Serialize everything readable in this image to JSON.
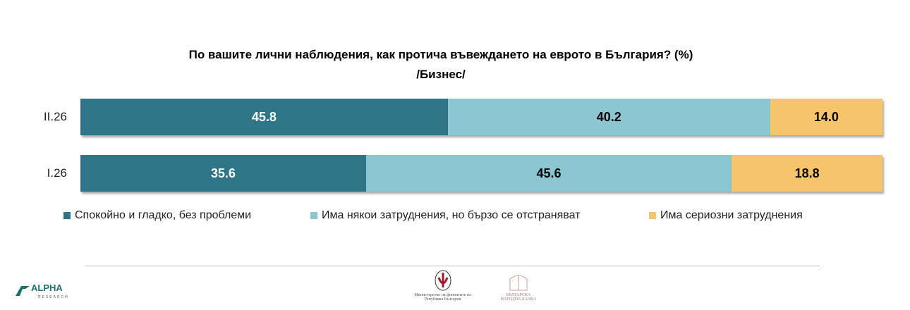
{
  "chart_data": {
    "type": "bar",
    "orientation": "horizontal-stacked",
    "title": "По вашите лични наблюдения, как протича въвеждането на еврото в България? (%)",
    "subtitle": "/Бизнес/",
    "categories": [
      "II.26",
      "I.26"
    ],
    "series": [
      {
        "name": "Спокойно и гладко, без проблеми",
        "color": "#2f7487",
        "label_color": "#ffffff",
        "values": [
          45.8,
          35.6
        ]
      },
      {
        "name": "Има някои затруднения, но бързо се отстраняват",
        "color": "#8bc6d1",
        "label_color": "#000000",
        "values": [
          40.2,
          45.6
        ]
      },
      {
        "name": "Има сериозни затруднения",
        "color": "#f6c56b",
        "label_color": "#000000",
        "values": [
          14.0,
          18.8
        ]
      }
    ],
    "xlim": [
      0,
      100
    ],
    "grid": false,
    "legend": "bottom"
  },
  "logos": {
    "alpha": "ALPHA RESEARCH",
    "ministry": "Министерство на финансите на Република България",
    "bnb": "БЪЛГАРСКА НАРОДНА БАНКА"
  }
}
